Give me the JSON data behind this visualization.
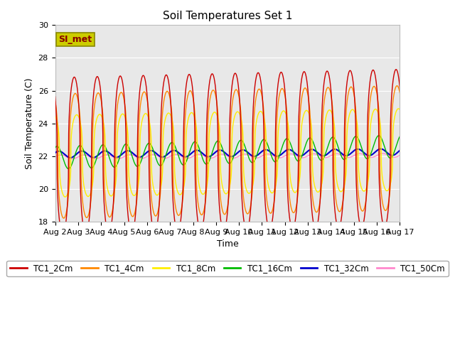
{
  "title": "Soil Temperatures Set 1",
  "xlabel": "Time",
  "ylabel": "Soil Temperature (C)",
  "ylim": [
    18,
    30
  ],
  "x_tick_labels": [
    "Aug 2",
    "Aug 3",
    "Aug 4",
    "Aug 5",
    "Aug 6",
    "Aug 7",
    "Aug 8",
    "Aug 9",
    "Aug 10",
    "Aug 11",
    "Aug 12",
    "Aug 13",
    "Aug 14",
    "Aug 15",
    "Aug 16",
    "Aug 17"
  ],
  "series": {
    "TC1_2Cm": {
      "color": "#cc0000",
      "lw": 1.0
    },
    "TC1_4Cm": {
      "color": "#ff8800",
      "lw": 1.0
    },
    "TC1_8Cm": {
      "color": "#ffee00",
      "lw": 1.0
    },
    "TC1_16Cm": {
      "color": "#00bb00",
      "lw": 1.0
    },
    "TC1_32Cm": {
      "color": "#0000cc",
      "lw": 1.5
    },
    "TC1_50Cm": {
      "color": "#ff88cc",
      "lw": 1.0
    }
  },
  "legend_text": "SI_met",
  "fig_facecolor": "#ffffff",
  "ax_facecolor": "#e8e8e8",
  "outer_facecolor": "#f0f0f0",
  "title_fontsize": 11,
  "axis_fontsize": 9,
  "tick_fontsize": 8
}
